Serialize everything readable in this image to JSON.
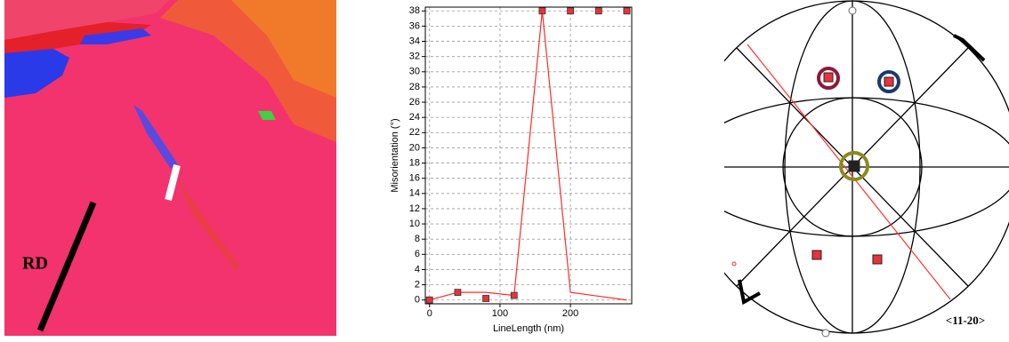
{
  "map": {
    "label": "RD"
  },
  "chart_data": {
    "type": "line",
    "x_label": "LineLength (nm)",
    "y_label": "Misorientation (°)",
    "x": [
      0,
      40,
      80,
      120,
      160,
      200,
      240,
      280
    ],
    "series": [
      {
        "style": "line",
        "color": "#ff2a2a",
        "values": [
          0,
          1,
          1,
          0.6,
          38,
          1,
          0.5,
          0
        ]
      },
      {
        "style": "markers",
        "color": "#e8323c",
        "values": [
          0,
          1,
          0.2,
          0.6,
          38,
          38,
          38,
          38
        ]
      }
    ],
    "xlim": [
      -6,
      287
    ],
    "ylim": [
      -0.5,
      38.5
    ],
    "xticks": [
      0,
      100,
      200
    ],
    "yticks": [
      0,
      2,
      4,
      6,
      8,
      10,
      12,
      14,
      16,
      18,
      20,
      22,
      24,
      26,
      28,
      30,
      32,
      34,
      36,
      38
    ],
    "grid": true
  },
  "pole_figure": {
    "label": "<11-20>"
  }
}
